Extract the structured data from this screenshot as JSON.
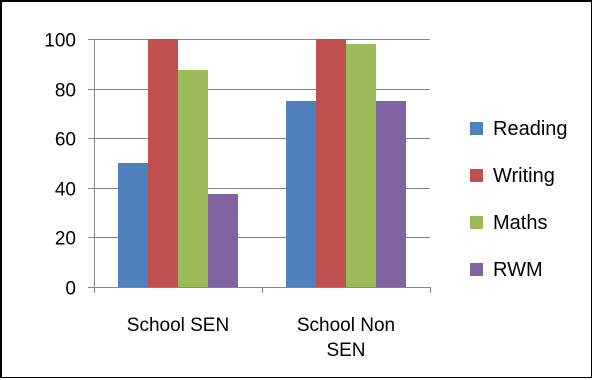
{
  "chart_data": {
    "type": "bar",
    "categories": [
      "School SEN",
      "School Non SEN"
    ],
    "category_lines": [
      [
        "School SEN"
      ],
      [
        "School Non",
        "SEN"
      ]
    ],
    "series": [
      {
        "name": "Reading",
        "color": "#4F81BD",
        "values": [
          50,
          75
        ]
      },
      {
        "name": "Writing",
        "color": "#C0504D",
        "values": [
          100,
          100
        ]
      },
      {
        "name": "Maths",
        "color": "#9BBB59",
        "values": [
          87.5,
          98
        ]
      },
      {
        "name": "RWM",
        "color": "#8064A2",
        "values": [
          37.5,
          75
        ]
      }
    ],
    "ylim": [
      0,
      100
    ],
    "yticks": [
      0,
      20,
      40,
      60,
      80,
      100
    ],
    "grid": true,
    "legend_position": "right",
    "title": "",
    "xlabel": "",
    "ylabel": ""
  }
}
